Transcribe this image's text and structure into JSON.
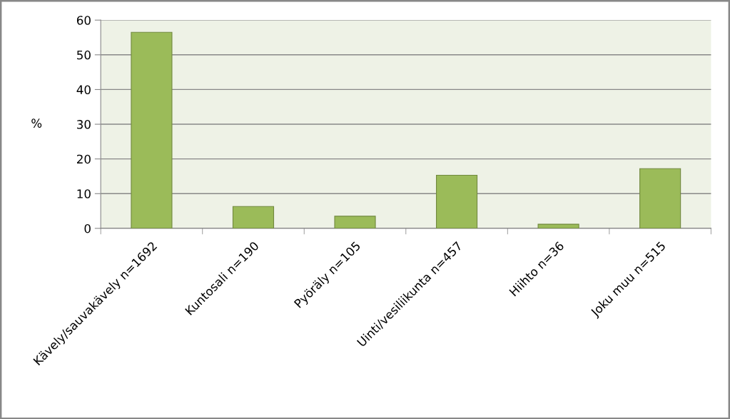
{
  "chart_data": {
    "type": "bar",
    "ylabel": "%",
    "categories": [
      "Kävely/sauvakävely n=1692",
      "Kuntosali n=190",
      "Pyöräly n=105",
      "Uinti/vesiliikunta n=457",
      "Hiihto n=36",
      "Joku muu n=515"
    ],
    "values": [
      56.5,
      6.3,
      3.5,
      15.3,
      1.2,
      17.2
    ],
    "color": "#9bbb59",
    "ylim": [
      0,
      60
    ],
    "yticks": [
      0,
      10,
      20,
      30,
      40,
      50,
      60
    ],
    "grid": "y",
    "legend": false
  }
}
